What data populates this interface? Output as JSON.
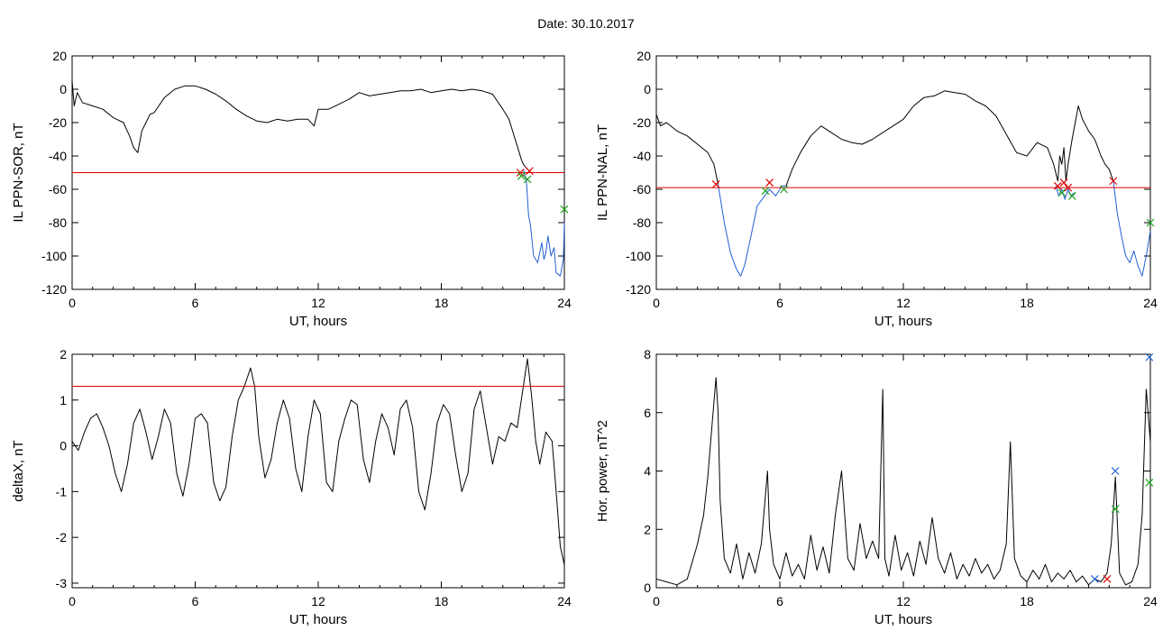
{
  "page_title": "Date:  30.10.2017",
  "chart_data": [
    {
      "type": "line",
      "id": "ppn-sor",
      "xlabel": "UT, hours",
      "ylabel": "IL PPN-SOR, nT",
      "xlim": [
        0,
        24
      ],
      "ylim": [
        -120,
        20
      ],
      "xticks": [
        0,
        6,
        12,
        18,
        24
      ],
      "yticks": [
        -120,
        -100,
        -80,
        -60,
        -40,
        -20,
        0,
        20
      ],
      "threshold": -50,
      "threshold_color": "#e00000",
      "grid": false,
      "series": [
        {
          "color": "#000000",
          "x": [
            0,
            0.1,
            0.25,
            0.5,
            1.0,
            1.5,
            2.0,
            2.5,
            2.8,
            3.0,
            3.2,
            3.4,
            3.6,
            3.8,
            4.0,
            4.5,
            5.0,
            5.5,
            6.0,
            6.5,
            7.0,
            7.5,
            8.0,
            8.5,
            9.0,
            9.5,
            10.0,
            10.5,
            11.0,
            11.5,
            11.8,
            12.0,
            12.5,
            13.0,
            13.5,
            14.0,
            14.5,
            15.0,
            15.5,
            16.0,
            16.5,
            17.0,
            17.5,
            18.0,
            18.5,
            19.0,
            19.5,
            20.0,
            20.5,
            21.0,
            21.3,
            21.6,
            21.8,
            21.9,
            22.0,
            22.2
          ],
          "y": [
            5,
            -10,
            -2,
            -8,
            -10,
            -12,
            -17,
            -20,
            -28,
            -35,
            -38,
            -25,
            -20,
            -15,
            -14,
            -5,
            0,
            2,
            2,
            0,
            -3,
            -7,
            -12,
            -16,
            -19,
            -20,
            -18,
            -19,
            -18,
            -18,
            -22,
            -12,
            -12,
            -9,
            -6,
            -2,
            -4,
            -3,
            -2,
            -1,
            -1,
            0,
            -2,
            -1,
            0,
            -1,
            0,
            -1,
            -3,
            -12,
            -18,
            -30,
            -38,
            -42,
            -45,
            -48
          ]
        },
        {
          "color": "#1f5fd6",
          "x": [
            22.0,
            22.15,
            22.25,
            22.35,
            22.5,
            22.7,
            22.9,
            23.0,
            23.1,
            23.2,
            23.35,
            23.5,
            23.6,
            23.8,
            23.95,
            24.0
          ],
          "y": [
            -48,
            -55,
            -75,
            -82,
            -100,
            -104,
            -92,
            -102,
            -98,
            -88,
            -100,
            -95,
            -110,
            -112,
            -102,
            -80
          ]
        }
      ],
      "markers": [
        {
          "x": 21.85,
          "y": -50,
          "color": "#e00000",
          "symbol": "x"
        },
        {
          "x": 22.3,
          "y": -49,
          "color": "#e00000",
          "symbol": "x"
        },
        {
          "x": 21.9,
          "y": -52,
          "color": "#1aa31a",
          "symbol": "x"
        },
        {
          "x": 22.2,
          "y": -54,
          "color": "#1aa31a",
          "symbol": "x"
        },
        {
          "x": 24.0,
          "y": -72,
          "color": "#1aa31a",
          "symbol": "x"
        }
      ]
    },
    {
      "type": "line",
      "id": "ppn-nal",
      "xlabel": "UT, hours",
      "ylabel": "IL PPN-NAL, nT",
      "xlim": [
        0,
        24
      ],
      "ylim": [
        -120,
        20
      ],
      "xticks": [
        0,
        6,
        12,
        18,
        24
      ],
      "yticks": [
        -120,
        -100,
        -80,
        -60,
        -40,
        -20,
        0,
        20
      ],
      "threshold": -59,
      "threshold_color": "#e00000",
      "grid": false,
      "series": [
        {
          "color": "#000000",
          "x": [
            0,
            0.2,
            0.5,
            1.0,
            1.5,
            2.0,
            2.5,
            2.8,
            3.0
          ],
          "y": [
            -15,
            -22,
            -20,
            -25,
            -28,
            -33,
            -38,
            -45,
            -57
          ]
        },
        {
          "color": "#1f5fd6",
          "x": [
            3.0,
            3.3,
            3.6,
            3.9,
            4.1,
            4.3,
            4.6,
            4.9,
            5.2,
            5.5,
            5.8,
            6.1,
            6.3
          ],
          "y": [
            -57,
            -80,
            -98,
            -108,
            -112,
            -105,
            -88,
            -70,
            -65,
            -60,
            -64,
            -58,
            -58
          ]
        },
        {
          "color": "#000000",
          "x": [
            6.3,
            6.6,
            7.0,
            7.5,
            8.0,
            8.5,
            9.0,
            9.5,
            10.0,
            10.5,
            11.0,
            11.5,
            12.0,
            12.5,
            13.0,
            13.5,
            14.0,
            14.5,
            15.0,
            15.5,
            16.0,
            16.5,
            17.0,
            17.5,
            18.0,
            18.5,
            19.0,
            19.3,
            19.5,
            19.6,
            19.7,
            19.8,
            19.9,
            20.0,
            20.2,
            20.5,
            20.7,
            21.0,
            21.3,
            21.6,
            21.8,
            22.0,
            22.2
          ],
          "y": [
            -58,
            -48,
            -38,
            -28,
            -22,
            -26,
            -30,
            -32,
            -33,
            -30,
            -26,
            -22,
            -18,
            -10,
            -5,
            -4,
            -1,
            -2,
            -3,
            -7,
            -10,
            -16,
            -27,
            -38,
            -40,
            -32,
            -35,
            -45,
            -55,
            -40,
            -45,
            -35,
            -55,
            -45,
            -30,
            -10,
            -18,
            -25,
            -30,
            -40,
            -45,
            -48,
            -55
          ]
        },
        {
          "color": "#1f5fd6",
          "x": [
            22.2,
            22.4,
            22.6,
            22.8,
            23.0,
            23.2,
            23.4,
            23.6,
            23.8,
            24.0
          ],
          "y": [
            -55,
            -75,
            -88,
            -100,
            -104,
            -97,
            -106,
            -112,
            -100,
            -85
          ]
        },
        {
          "color": "#1f5fd6",
          "x": [
            19.4,
            19.55,
            19.7,
            19.85,
            20.0,
            20.15,
            20.3
          ],
          "y": [
            -58,
            -64,
            -60,
            -66,
            -60,
            -64,
            -62
          ]
        }
      ],
      "markers": [
        {
          "x": 2.9,
          "y": -57,
          "color": "#e00000",
          "symbol": "x"
        },
        {
          "x": 5.5,
          "y": -56,
          "color": "#e00000",
          "symbol": "x"
        },
        {
          "x": 5.3,
          "y": -61,
          "color": "#1aa31a",
          "symbol": "x"
        },
        {
          "x": 6.2,
          "y": -60,
          "color": "#1aa31a",
          "symbol": "x"
        },
        {
          "x": 19.5,
          "y": -58,
          "color": "#e00000",
          "symbol": "x"
        },
        {
          "x": 19.8,
          "y": -56,
          "color": "#e00000",
          "symbol": "x"
        },
        {
          "x": 20.0,
          "y": -59,
          "color": "#e00000",
          "symbol": "x"
        },
        {
          "x": 19.7,
          "y": -62,
          "color": "#1aa31a",
          "symbol": "x"
        },
        {
          "x": 20.2,
          "y": -64,
          "color": "#1aa31a",
          "symbol": "x"
        },
        {
          "x": 22.2,
          "y": -55,
          "color": "#e00000",
          "symbol": "x"
        },
        {
          "x": 24.0,
          "y": -80,
          "color": "#1aa31a",
          "symbol": "x"
        }
      ]
    },
    {
      "type": "line",
      "id": "deltax",
      "xlabel": "UT, hours",
      "ylabel": "deltaX, nT",
      "xlim": [
        0,
        24
      ],
      "ylim": [
        -3.1,
        2.0
      ],
      "xticks": [
        0,
        6,
        12,
        18,
        24
      ],
      "yticks": [
        -3,
        -2,
        -1,
        0,
        1,
        2
      ],
      "threshold": 1.3,
      "threshold_color": "#e00000",
      "grid": false,
      "series": [
        {
          "color": "#000000",
          "x": [
            0,
            0.3,
            0.6,
            0.9,
            1.2,
            1.5,
            1.8,
            2.1,
            2.4,
            2.7,
            3.0,
            3.3,
            3.6,
            3.9,
            4.2,
            4.5,
            4.8,
            5.1,
            5.4,
            5.7,
            6.0,
            6.3,
            6.6,
            6.9,
            7.2,
            7.5,
            7.8,
            8.1,
            8.4,
            8.7,
            8.9,
            9.1,
            9.4,
            9.7,
            10.0,
            10.3,
            10.6,
            10.9,
            11.2,
            11.5,
            11.8,
            12.1,
            12.4,
            12.7,
            13.0,
            13.3,
            13.6,
            13.9,
            14.2,
            14.5,
            14.8,
            15.1,
            15.4,
            15.7,
            16.0,
            16.3,
            16.6,
            16.9,
            17.2,
            17.5,
            17.8,
            18.1,
            18.4,
            18.7,
            19.0,
            19.3,
            19.6,
            19.9,
            20.2,
            20.5,
            20.8,
            21.1,
            21.4,
            21.7,
            22.0,
            22.2,
            22.4,
            22.6,
            22.8,
            23.1,
            23.4,
            23.6,
            23.8,
            24.0
          ],
          "y": [
            0.1,
            -0.1,
            0.3,
            0.6,
            0.7,
            0.4,
            0.0,
            -0.6,
            -1.0,
            -0.4,
            0.5,
            0.8,
            0.3,
            -0.3,
            0.2,
            0.8,
            0.5,
            -0.6,
            -1.1,
            -0.4,
            0.6,
            0.7,
            0.5,
            -0.8,
            -1.2,
            -0.9,
            0.2,
            1.0,
            1.3,
            1.7,
            1.3,
            0.2,
            -0.7,
            -0.3,
            0.5,
            1.0,
            0.6,
            -0.5,
            -1.0,
            0.2,
            1.0,
            0.7,
            -0.8,
            -1.0,
            0.1,
            0.6,
            1.0,
            0.9,
            -0.3,
            -0.8,
            0.1,
            0.7,
            0.4,
            -0.2,
            0.8,
            1.0,
            0.4,
            -1.0,
            -1.4,
            -0.6,
            0.5,
            0.9,
            0.7,
            -0.2,
            -1.0,
            -0.6,
            0.8,
            1.2,
            0.4,
            -0.4,
            0.2,
            0.1,
            0.5,
            0.4,
            1.3,
            1.9,
            1.1,
            0.1,
            -0.4,
            0.3,
            0.1,
            -1.0,
            -2.2,
            -2.6
          ]
        }
      ],
      "markers": []
    },
    {
      "type": "line",
      "id": "hor-power",
      "xlabel": "UT, hours",
      "ylabel": "Hor. power, nT^2",
      "xlim": [
        0,
        24
      ],
      "ylim": [
        0,
        8
      ],
      "xticks": [
        0,
        6,
        12,
        18,
        24
      ],
      "yticks": [
        0,
        2,
        4,
        6,
        8
      ],
      "threshold": null,
      "grid": false,
      "series": [
        {
          "color": "#000000",
          "x": [
            0,
            0.5,
            1.0,
            1.5,
            2.0,
            2.3,
            2.5,
            2.7,
            2.9,
            3.0,
            3.1,
            3.3,
            3.6,
            3.9,
            4.2,
            4.5,
            4.8,
            5.1,
            5.4,
            5.5,
            5.7,
            6.0,
            6.3,
            6.6,
            6.9,
            7.2,
            7.5,
            7.8,
            8.1,
            8.4,
            8.7,
            9.0,
            9.3,
            9.6,
            9.9,
            10.2,
            10.5,
            10.8,
            11.0,
            11.1,
            11.3,
            11.6,
            11.9,
            12.2,
            12.5,
            12.8,
            13.1,
            13.4,
            13.7,
            14.0,
            14.3,
            14.6,
            14.9,
            15.2,
            15.5,
            15.8,
            16.1,
            16.4,
            16.7,
            17.0,
            17.2,
            17.4,
            17.7,
            18.0,
            18.3,
            18.6,
            18.9,
            19.2,
            19.5,
            19.8,
            20.1,
            20.4,
            20.7,
            21.0,
            21.3,
            21.6,
            21.9,
            22.1,
            22.3,
            22.5,
            22.8,
            23.1,
            23.4,
            23.6,
            23.8,
            24.0
          ],
          "y": [
            0.3,
            0.2,
            0.1,
            0.3,
            1.5,
            2.5,
            3.8,
            5.5,
            7.2,
            6.0,
            3.0,
            1.0,
            0.5,
            1.5,
            0.3,
            1.2,
            0.5,
            1.5,
            4.0,
            2.0,
            0.8,
            0.3,
            1.2,
            0.4,
            0.8,
            0.3,
            1.8,
            0.6,
            1.4,
            0.5,
            2.5,
            4.0,
            1.0,
            0.6,
            2.2,
            1.0,
            1.6,
            1.0,
            6.8,
            1.0,
            0.4,
            1.8,
            0.6,
            1.2,
            0.4,
            1.6,
            0.8,
            2.4,
            1.0,
            0.5,
            1.2,
            0.3,
            0.8,
            0.4,
            1.0,
            0.5,
            0.8,
            0.3,
            0.6,
            1.5,
            5.0,
            1.0,
            0.4,
            0.2,
            0.6,
            0.3,
            0.8,
            0.2,
            0.5,
            0.3,
            0.6,
            0.2,
            0.4,
            0.1,
            0.3,
            0.2,
            0.5,
            1.5,
            3.8,
            0.5,
            0.1,
            0.2,
            0.8,
            2.5,
            6.8,
            5.0
          ]
        }
      ],
      "markers": [
        {
          "x": 21.3,
          "y": 0.3,
          "color": "#1f5fd6",
          "symbol": "x"
        },
        {
          "x": 21.9,
          "y": 0.3,
          "color": "#e00000",
          "symbol": "x"
        },
        {
          "x": 22.3,
          "y": 4.0,
          "color": "#1f5fd6",
          "symbol": "x"
        },
        {
          "x": 22.3,
          "y": 2.7,
          "color": "#1aa31a",
          "symbol": "x"
        },
        {
          "x": 23.95,
          "y": 7.9,
          "color": "#1f5fd6",
          "symbol": "x"
        },
        {
          "x": 23.95,
          "y": 3.6,
          "color": "#1aa31a",
          "symbol": "x"
        }
      ]
    }
  ]
}
